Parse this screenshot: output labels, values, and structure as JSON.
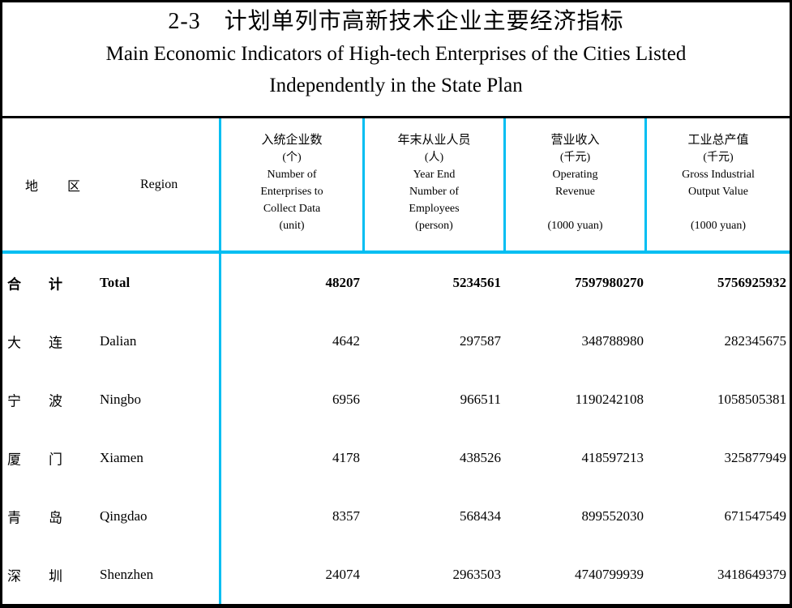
{
  "title": {
    "zh": "2-3　计划单列市高新技术企业主要经济指标",
    "en_line1": "Main Economic Indicators of High-tech Enterprises of the Cities Listed",
    "en_line2": "Independently in the State Plan"
  },
  "header": {
    "region": {
      "zh1": "地",
      "zh2": "区",
      "en": "Region"
    },
    "columns": [
      {
        "lines": [
          "入统企业数",
          "(个)",
          "Number of",
          "Enterprises to",
          "Collect Data",
          "(unit)"
        ]
      },
      {
        "lines": [
          "年末从业人员",
          "(人)",
          "Year End",
          "Number of",
          "Employees",
          "(person)"
        ]
      },
      {
        "lines": [
          "营业收入",
          "(千元)",
          "Operating",
          "Revenue",
          "",
          "(1000 yuan)"
        ]
      },
      {
        "lines": [
          "工业总产值",
          "(千元)",
          "Gross Industrial",
          "Output Value",
          "",
          "(1000 yuan)"
        ]
      }
    ]
  },
  "rows": [
    {
      "zh1": "合",
      "zh2": "计",
      "en": "Total",
      "values": [
        "48207",
        "5234561",
        "7597980270",
        "5756925932"
      ]
    },
    {
      "zh1": "大",
      "zh2": "连",
      "en": "Dalian",
      "values": [
        "4642",
        "297587",
        "348788980",
        "282345675"
      ]
    },
    {
      "zh1": "宁",
      "zh2": "波",
      "en": "Ningbo",
      "values": [
        "6956",
        "966511",
        "1190242108",
        "1058505381"
      ]
    },
    {
      "zh1": "厦",
      "zh2": "门",
      "en": "Xiamen",
      "values": [
        "4178",
        "438526",
        "418597213",
        "325877949"
      ]
    },
    {
      "zh1": "青",
      "zh2": "岛",
      "en": "Qingdao",
      "values": [
        "8357",
        "568434",
        "899552030",
        "671547549"
      ]
    },
    {
      "zh1": "深",
      "zh2": "圳",
      "en": "Shenzhen",
      "values": [
        "24074",
        "2963503",
        "4740799939",
        "3418649379"
      ]
    }
  ],
  "colors": {
    "divider_cyan": "#00BEF2",
    "border_black": "#000000",
    "background": "#FFFFFF",
    "text": "#000000"
  }
}
